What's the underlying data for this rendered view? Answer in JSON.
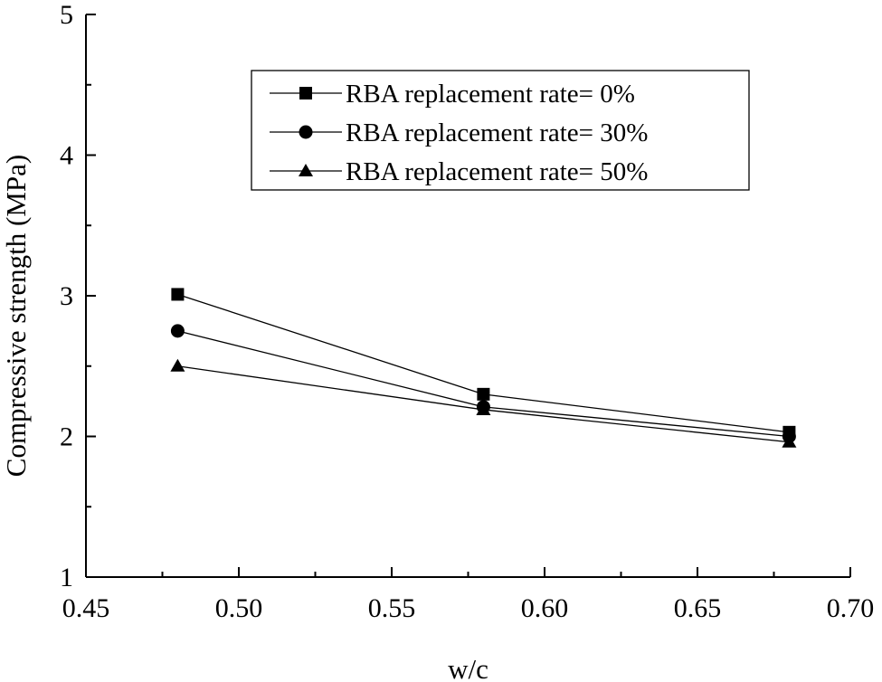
{
  "chart_data": {
    "type": "line",
    "title": "",
    "xlabel": "w/c",
    "ylabel": "Compressive strength (MPa)",
    "xlim": [
      0.45,
      0.7
    ],
    "ylim": [
      1,
      5
    ],
    "xticks": [
      "0.45",
      "0.50",
      "0.55",
      "0.60",
      "0.65",
      "0.70"
    ],
    "yticks": [
      "1",
      "2",
      "3",
      "4",
      "5"
    ],
    "x": [
      0.48,
      0.58,
      0.68
    ],
    "grid": false,
    "legend_position": "top-right",
    "series": [
      {
        "name": "RBA replacement rate= 0%",
        "marker": "square",
        "values": [
          3.01,
          2.3,
          2.03
        ]
      },
      {
        "name": "RBA replacement rate= 30%",
        "marker": "circle",
        "values": [
          2.75,
          2.21,
          2.0
        ]
      },
      {
        "name": "RBA replacement rate= 50%",
        "marker": "triangle",
        "values": [
          2.5,
          2.19,
          1.96
        ]
      }
    ]
  }
}
